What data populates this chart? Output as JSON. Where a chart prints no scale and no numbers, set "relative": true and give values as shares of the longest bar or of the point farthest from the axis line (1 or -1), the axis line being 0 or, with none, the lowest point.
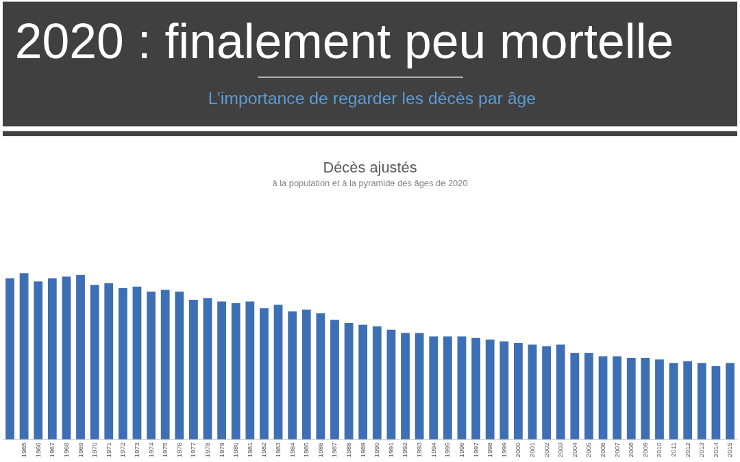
{
  "chart_data": {
    "type": "bar",
    "title": "Décès ajustés",
    "subtitle": "à la population et à la pyramide des âges de 2020",
    "annotations": [
      "2020 : finalement peu mortelle",
      "L’importance de regarder les décès par âge"
    ],
    "relative": true,
    "color": "#3d6fb5",
    "categories": [
      null,
      "1965",
      "1966",
      "1967",
      "1968",
      "1969",
      "1970",
      "1971",
      "1972",
      "1973",
      "1974",
      "1975",
      "1976",
      "1977",
      "1978",
      "1979",
      "1980",
      "1981",
      "1982",
      "1983",
      "1984",
      "1985",
      "1986",
      "1987",
      "1988",
      "1989",
      "1990",
      "1991",
      "1992",
      "1993",
      "1994",
      "1995",
      "1996",
      "1997",
      "1998",
      "1999",
      "2000",
      "2001",
      "2002",
      "2003",
      "2004",
      "2005",
      "2006",
      "2007",
      "2008",
      "2009",
      "2010",
      "2011",
      "2012",
      "2013",
      "2014",
      "2015"
    ],
    "values": [
      0.97,
      1.0,
      0.95,
      0.97,
      0.98,
      0.99,
      0.93,
      0.94,
      0.91,
      0.92,
      0.89,
      0.9,
      0.89,
      0.84,
      0.85,
      0.83,
      0.82,
      0.83,
      0.79,
      0.81,
      0.77,
      0.78,
      0.76,
      0.72,
      0.7,
      0.69,
      0.68,
      0.66,
      0.64,
      0.64,
      0.62,
      0.62,
      0.62,
      0.61,
      0.6,
      0.59,
      0.58,
      0.57,
      0.56,
      0.57,
      0.52,
      0.52,
      0.5,
      0.5,
      0.49,
      0.49,
      0.48,
      0.46,
      0.47,
      0.46,
      0.44,
      0.46
    ]
  }
}
